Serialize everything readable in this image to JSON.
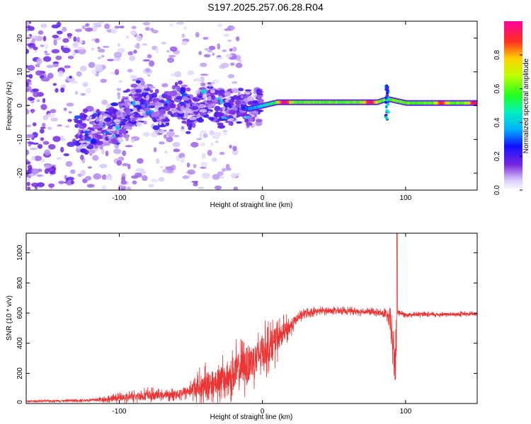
{
  "title": "S197.2025.257.06.28.R04",
  "colors": {
    "axis": "#000000",
    "snr_line": "#ee3333",
    "spectrogram_low": "#d8c8f8",
    "spectrogram_mid": "#6a18d8",
    "spectrogram_high": "#ff2a30"
  },
  "chart_data": [
    {
      "type": "heatmap",
      "name": "spectrogram",
      "xlabel": "Height of straight line (km)",
      "ylabel": "Frequency (Hz)",
      "xlim": [
        -165,
        150
      ],
      "ylim": [
        -25,
        25
      ],
      "xticks": [
        -100,
        0,
        100
      ],
      "xtick_labels": [
        "-100",
        "0",
        "100"
      ],
      "yticks": [
        -20,
        -10,
        0,
        10,
        20
      ],
      "ytick_labels": [
        "-20",
        "-10",
        "0",
        "10",
        "20"
      ],
      "ridge": {
        "description_points_km_hz": [
          [
            -125,
            -8
          ],
          [
            -105,
            -6
          ],
          [
            -90,
            0
          ],
          [
            -80,
            2
          ],
          [
            -70,
            -2
          ],
          [
            -60,
            2
          ],
          [
            -50,
            -2
          ],
          [
            -40,
            2
          ],
          [
            -30,
            -1
          ],
          [
            -20,
            0
          ],
          [
            -10,
            -1
          ],
          [
            0,
            0
          ],
          [
            10,
            1
          ],
          [
            20,
            1
          ],
          [
            60,
            1
          ],
          [
            80,
            1
          ],
          [
            87,
            2
          ],
          [
            100,
            0.8
          ],
          [
            150,
            0.8
          ]
        ],
        "peak_amplitude_km": [
          [
            15,
            1.0
          ],
          [
            75,
            0.95
          ],
          [
            125,
            0.9
          ],
          [
            148,
            1.0
          ]
        ]
      },
      "colorbar": {
        "label": "Normalized spectral amplitude",
        "range": [
          0,
          1
        ],
        "ticks": [
          0.0,
          0.2,
          0.4,
          0.6,
          0.8
        ],
        "tick_labels": [
          "0.0",
          "0.2",
          "0.4",
          "0.6",
          "0.8"
        ],
        "colormap": [
          "#ffffff",
          "#d8c8f8",
          "#6a18d8",
          "#0000ff",
          "#00e0ff",
          "#00ff40",
          "#c0ff00",
          "#ffd000",
          "#ff2a30",
          "#ff00a0"
        ]
      }
    },
    {
      "type": "line",
      "name": "snr",
      "xlabel": "Height of straight line (km)",
      "ylabel": "SNR (10 * v/v)",
      "xlim": [
        -165,
        150
      ],
      "ylim": [
        0,
        1130
      ],
      "xticks": [
        -100,
        0,
        100
      ],
      "xtick_labels": [
        "-100",
        "0",
        "100"
      ],
      "yticks": [
        0,
        200,
        400,
        600,
        800,
        1000
      ],
      "ytick_labels": [
        "0",
        "200",
        "400",
        "600",
        "800",
        "1000"
      ],
      "envelope": {
        "x": [
          -165,
          -140,
          -120,
          -100,
          -90,
          -80,
          -70,
          -60,
          -50,
          -45,
          -40,
          -35,
          -30,
          -25,
          -20,
          -15,
          -10,
          -5,
          0,
          5,
          10,
          15,
          20,
          25,
          30,
          40,
          60,
          80,
          87,
          90,
          92,
          93,
          94,
          95,
          96,
          100,
          120,
          150
        ],
        "base": [
          15,
          18,
          22,
          35,
          45,
          55,
          55,
          60,
          90,
          110,
          130,
          140,
          150,
          170,
          200,
          240,
          260,
          300,
          340,
          380,
          420,
          470,
          520,
          570,
          600,
          615,
          615,
          605,
          590,
          500,
          300,
          280,
          600,
          610,
          600,
          590,
          590,
          595
        ],
        "noise_amplitude": [
          10,
          10,
          15,
          40,
          50,
          60,
          40,
          50,
          70,
          120,
          180,
          150,
          160,
          170,
          250,
          200,
          250,
          200,
          200,
          200,
          170,
          120,
          80,
          50,
          40,
          30,
          30,
          30,
          50,
          150,
          200,
          400,
          60,
          30,
          25,
          20,
          20,
          20
        ],
        "spike": {
          "x": 94,
          "value": 1130
        }
      }
    }
  ]
}
